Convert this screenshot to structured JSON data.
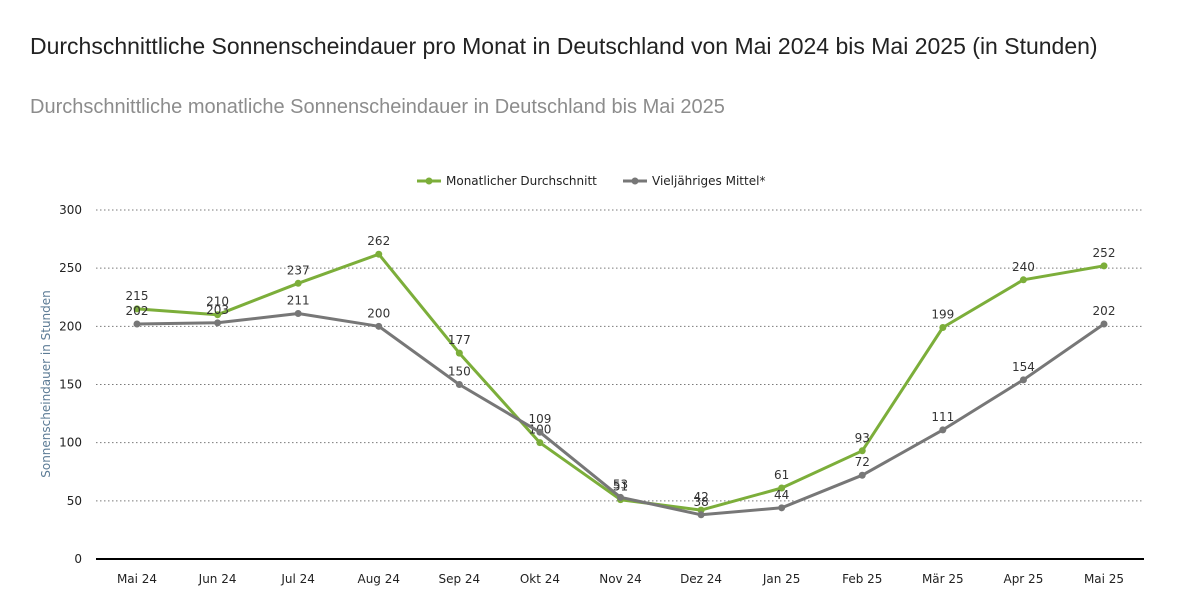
{
  "header": {
    "title": "Durchschnittliche Sonnenscheindauer pro Monat in Deutschland von Mai 2024 bis Mai 2025 (in Stunden)",
    "subtitle": "Durchschnittliche monatliche Sonnenscheindauer in Deutschland bis Mai 2025"
  },
  "chart_data": {
    "type": "line",
    "title": "Durchschnittliche Sonnenscheindauer pro Monat in Deutschland von Mai 2024 bis Mai 2025 (in Stunden)",
    "subtitle": "Durchschnittliche monatliche Sonnenscheindauer in Deutschland bis Mai 2025",
    "xlabel": "",
    "ylabel": "Sonnenscheindauer in Stunden",
    "ylim": [
      0,
      300
    ],
    "yticks": [
      0,
      50,
      100,
      150,
      200,
      250,
      300
    ],
    "grid": true,
    "legend_position": "top-center",
    "categories": [
      "Mai 24",
      "Jun 24",
      "Jul 24",
      "Aug 24",
      "Sep 24",
      "Okt 24",
      "Nov 24",
      "Dez 24",
      "Jan 25",
      "Feb 25",
      "Mär 25",
      "Apr 25",
      "Mai 25"
    ],
    "series": [
      {
        "name": "Monatlicher Durchschnitt",
        "color": "#7cae3a",
        "values": [
          215,
          210,
          237,
          262,
          177,
          100,
          51,
          42,
          61,
          93,
          199,
          240,
          252
        ]
      },
      {
        "name": "Vieljähriges Mittel*",
        "color": "#777777",
        "values": [
          202,
          203,
          211,
          200,
          150,
          109,
          53,
          38,
          44,
          72,
          111,
          154,
          202
        ]
      }
    ]
  }
}
